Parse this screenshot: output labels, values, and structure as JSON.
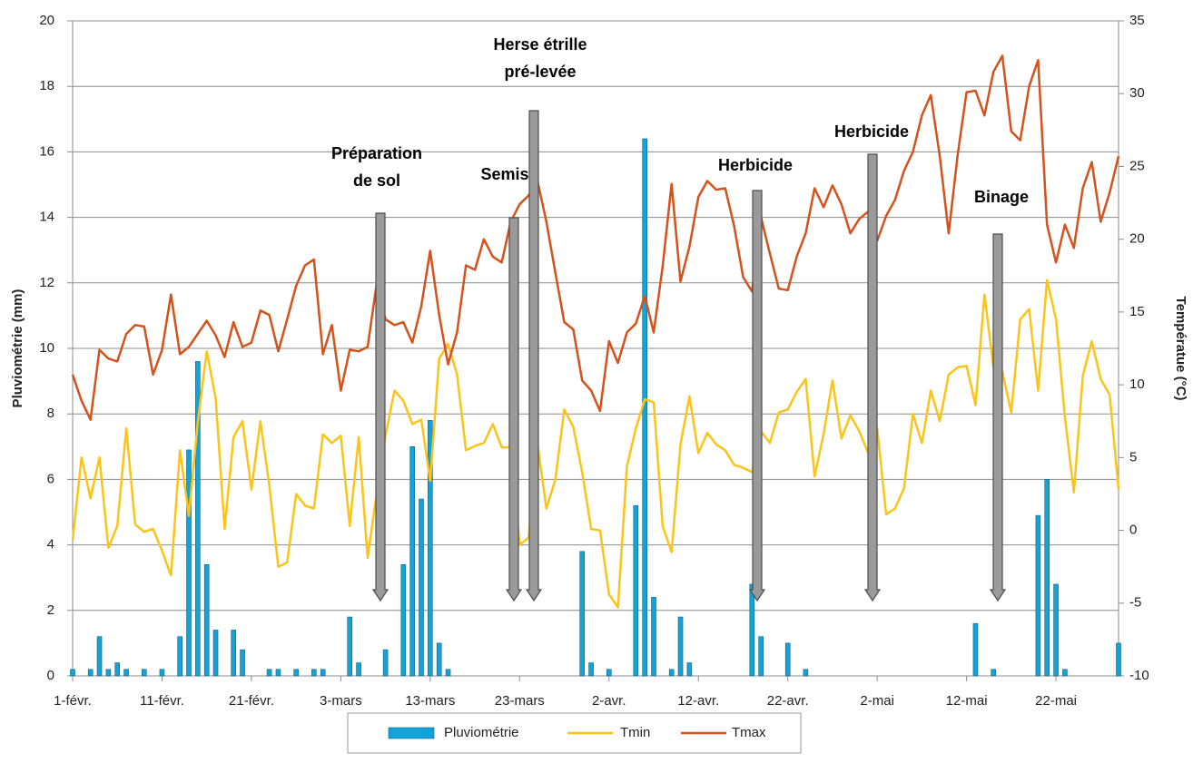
{
  "chart_data": {
    "type": "bar_line",
    "ylabel": "Pluviométrie (mm)",
    "y2label": "Températue (°C)",
    "categories": [
      "1-févr.",
      null,
      null,
      null,
      null,
      null,
      null,
      null,
      null,
      null,
      "11-févr.",
      null,
      null,
      null,
      null,
      null,
      null,
      null,
      null,
      null,
      "21-févr.",
      null,
      null,
      null,
      null,
      null,
      null,
      null,
      null,
      null,
      "3-mars",
      null,
      null,
      null,
      null,
      null,
      null,
      null,
      null,
      null,
      "13-mars",
      null,
      null,
      null,
      null,
      null,
      null,
      null,
      null,
      null,
      "23-mars",
      null,
      null,
      null,
      null,
      null,
      null,
      null,
      null,
      null,
      "2-avr.",
      null,
      null,
      null,
      null,
      null,
      null,
      null,
      null,
      null,
      "12-avr.",
      null,
      null,
      null,
      null,
      null,
      null,
      null,
      null,
      null,
      "22-avr.",
      null,
      null,
      null,
      null,
      null,
      null,
      null,
      null,
      null,
      "2-mai",
      null,
      null,
      null,
      null,
      null,
      null,
      null,
      null,
      null,
      "12-mai",
      null,
      null,
      null,
      null,
      null,
      null,
      null,
      null,
      null,
      "22-mai",
      null,
      null,
      null,
      null,
      null,
      null,
      null
    ],
    "series": [
      {
        "name": "Pluviométrie",
        "type": "bar",
        "color": "#12a3d9",
        "values": [
          0.2,
          0,
          0.2,
          1.2,
          0.2,
          0.4,
          0.2,
          0,
          0.2,
          0,
          0.2,
          0,
          1.2,
          6.9,
          9.6,
          3.4,
          1.4,
          0,
          1.4,
          0.8,
          0,
          0,
          0.2,
          0.2,
          0,
          0.2,
          0,
          0.2,
          0.2,
          0,
          0,
          1.8,
          0.4,
          0,
          0,
          0.8,
          0,
          3.4,
          7,
          5.4,
          7.8,
          1,
          0.2,
          0,
          0,
          0,
          0,
          0,
          0,
          0,
          0,
          0,
          0,
          0,
          0,
          0,
          0,
          3.8,
          0.4,
          0,
          0.2,
          0,
          0,
          5.2,
          16.4,
          2.4,
          0,
          0.2,
          1.8,
          0.4,
          0,
          0,
          0,
          0,
          0,
          0,
          2.8,
          1.2,
          0,
          0,
          1,
          0,
          0.2,
          0,
          0,
          0,
          0,
          0,
          0,
          0,
          0,
          0,
          0,
          0,
          0,
          0,
          0,
          0,
          0,
          0,
          0,
          1.6,
          0,
          0.2,
          0,
          0,
          0,
          0,
          4.9,
          6,
          2.8,
          0.2,
          0,
          0,
          0,
          0,
          0,
          1
        ]
      },
      {
        "name": "Tmin",
        "type": "line",
        "axis": "y2",
        "color": "#fcc419",
        "values": [
          -0.7,
          5.0,
          2.2,
          5.0,
          -1.2,
          0.3,
          7.0,
          0.4,
          -0.1,
          0.1,
          -1.4,
          -3.1,
          5.5,
          1.0,
          7.4,
          12.3,
          9.1,
          0.1,
          6.4,
          7.5,
          2.8,
          7.5,
          3.1,
          -2.5,
          -2.2,
          2.5,
          1.7,
          1.5,
          6.6,
          6.0,
          6.5,
          0.3,
          6.4,
          -1.9,
          2.5,
          6.5,
          9.6,
          8.9,
          7.3,
          7.6,
          3.4,
          11.8,
          12.8,
          10.7,
          5.5,
          5.8,
          6.0,
          7.3,
          5.7,
          5.7,
          -1.0,
          -0.5,
          5.9,
          1.5,
          3.5,
          8.3,
          7.1,
          4.0,
          0.1,
          0.0,
          -4.4,
          -5.3,
          4.4,
          7.0,
          9.0,
          8.8,
          0.3,
          -1.5,
          5.9,
          9.2,
          5.3,
          6.7,
          5.9,
          5.5,
          4.5,
          4.3,
          4.0,
          6.8,
          6.0,
          8.1,
          8.3,
          9.5,
          10.4,
          3.7,
          6.6,
          10.3,
          6.3,
          7.9,
          6.8,
          5.3,
          7.0,
          1.1,
          1.5,
          2.9,
          8.0,
          6.0,
          9.6,
          7.5,
          10.7,
          11.2,
          11.3,
          8.6,
          16.2,
          11.2,
          10.9,
          8.1,
          14.5,
          15.2,
          9.6,
          17.2,
          14.5,
          7.8,
          2.6,
          10.6,
          13.0,
          10.4,
          9.3,
          2.8
        ]
      },
      {
        "name": "Tmax",
        "type": "line",
        "axis": "y2",
        "color": "#d4521b",
        "values": [
          10.7,
          8.9,
          7.6,
          12.4,
          11.8,
          11.6,
          13.5,
          14.1,
          14.0,
          10.7,
          12.4,
          16.2,
          12.1,
          12.6,
          13.5,
          14.4,
          13.4,
          11.9,
          14.3,
          12.6,
          12.9,
          15.1,
          14.8,
          12.3,
          14.5,
          16.8,
          18.2,
          18.6,
          12.1,
          14.1,
          9.6,
          12.4,
          12.3,
          12.6,
          16.9,
          14.5,
          14.1,
          14.3,
          12.9,
          15.4,
          19.2,
          14.8,
          11.4,
          13.6,
          18.2,
          17.9,
          20.0,
          18.8,
          18.4,
          21.2,
          22.4,
          23.0,
          24.0,
          21.2,
          17.7,
          14.3,
          13.8,
          10.3,
          9.6,
          8.2,
          13.0,
          11.5,
          13.6,
          14.2,
          16.1,
          13.6,
          18.1,
          23.8,
          17.1,
          19.5,
          22.9,
          24.0,
          23.4,
          23.5,
          20.9,
          17.4,
          16.4,
          21.5,
          19.0,
          16.6,
          16.5,
          18.8,
          20.4,
          23.5,
          22.2,
          23.7,
          22.4,
          20.4,
          21.4,
          21.9,
          19.9,
          21.6,
          22.7,
          24.7,
          26.0,
          28.5,
          29.9,
          25.7,
          20.4,
          25.8,
          30.1,
          30.2,
          28.5,
          31.5,
          32.6,
          27.4,
          26.8,
          30.5,
          32.3,
          21.0,
          18.4,
          21.0,
          19.4,
          23.5,
          25.3,
          21.2,
          23.2,
          25.7
        ]
      }
    ],
    "ylim": [
      0,
      20
    ],
    "yticks": [
      0,
      2,
      4,
      6,
      8,
      10,
      12,
      14,
      16,
      18,
      20
    ],
    "y2lim": [
      -10,
      35
    ],
    "y2ticks": [
      -10,
      -5,
      0,
      5,
      10,
      15,
      20,
      25,
      30,
      35
    ],
    "grid": true,
    "legend": "bottom",
    "annotations": [
      [
        "Préparation",
        "de sol"
      ],
      [
        "Semis"
      ],
      [
        "Herse étrille",
        "pré-levée"
      ],
      [
        "Herbicide"
      ],
      [
        "Herbicide"
      ],
      [
        "Binage"
      ]
    ]
  }
}
